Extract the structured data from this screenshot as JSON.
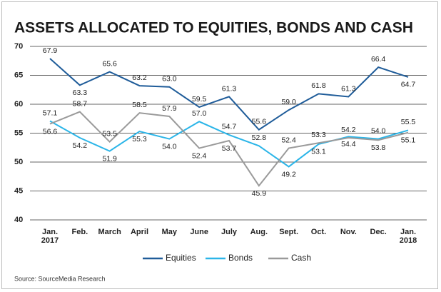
{
  "chart_data": {
    "type": "line",
    "title": "ASSETS ALLOCATED TO EQUITIES, BONDS AND CASH",
    "categories": [
      "Jan. 2017",
      "Feb.",
      "March",
      "April",
      "May",
      "June",
      "July",
      "Aug.",
      "Sept.",
      "Oct.",
      "Nov.",
      "Dec.",
      "Jan. 2018"
    ],
    "series": [
      {
        "name": "Equities",
        "color": "#1f5c99",
        "values": [
          67.9,
          63.3,
          65.6,
          63.2,
          63.0,
          59.5,
          61.3,
          55.6,
          59.0,
          61.8,
          61.3,
          66.4,
          64.7
        ],
        "value_labels": [
          "67.9",
          "63.3",
          "65.6",
          "63.2",
          "63.0",
          "59.5",
          "61.3",
          "55.6",
          "59.0",
          "61.8",
          "61.3",
          "66.4",
          "64.7"
        ]
      },
      {
        "name": "Bonds",
        "color": "#2bb5e8",
        "values": [
          57.1,
          54.2,
          51.9,
          55.3,
          54.0,
          57.0,
          54.7,
          52.8,
          49.2,
          53.1,
          54.4,
          54.0,
          55.5
        ],
        "value_labels": [
          "57.1",
          "54.2",
          "51.9",
          "55.3",
          "54.0",
          "57.0",
          "54.7",
          "52.8",
          "49.2",
          "53.1",
          "54.4",
          "54.0",
          "55.5"
        ]
      },
      {
        "name": "Cash",
        "color": "#9a9a9a",
        "values": [
          56.6,
          58.7,
          53.5,
          58.5,
          57.9,
          52.4,
          53.7,
          45.9,
          52.4,
          53.3,
          54.2,
          53.8,
          55.1
        ],
        "value_labels": [
          "56.6",
          "58.7",
          "53.5",
          "58.5",
          "57.9",
          "52.4",
          "53.7",
          "45.9",
          "52.4",
          "53.3",
          "54.2",
          "53.8",
          "55.1"
        ]
      }
    ],
    "ylim": [
      40,
      70
    ],
    "yticks": [
      40,
      45,
      50,
      55,
      60,
      65,
      70
    ],
    "grid": true,
    "legend": "bottom",
    "source": "Source: SourceMedia Research"
  }
}
